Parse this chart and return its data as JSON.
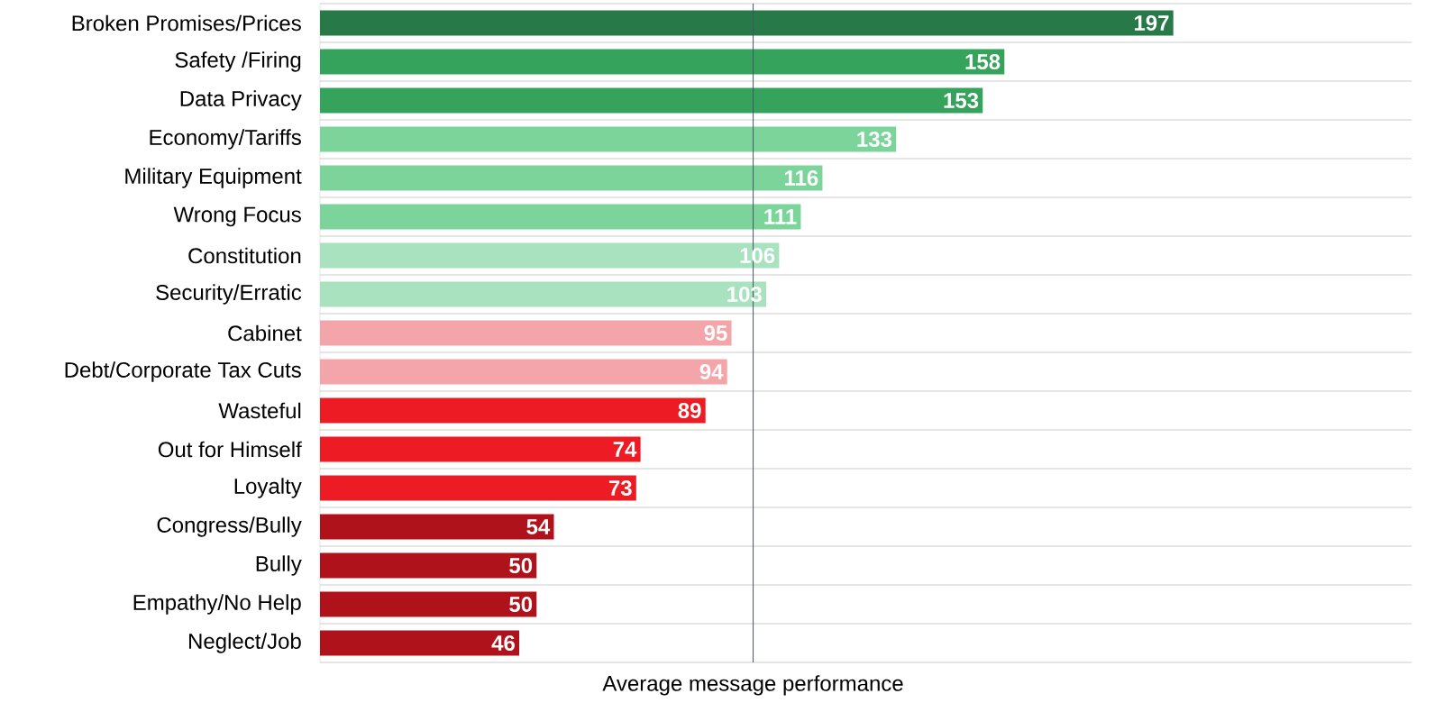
{
  "chart_data": {
    "type": "bar",
    "orientation": "horizontal",
    "categories": [
      "Broken Promises/Prices",
      "Safety /Firing",
      "Data Privacy",
      "Economy/Tariffs",
      "Military Equipment",
      "Wrong Focus",
      "Constitution",
      "Security/Erratic",
      "Cabinet",
      "Debt/Corporate Tax Cuts",
      "Wasteful",
      "Out for Himself",
      "Loyalty",
      "Congress/Bully",
      "Bully",
      "Empathy/No Help",
      "Neglect/Job"
    ],
    "values": [
      197,
      158,
      153,
      133,
      116,
      111,
      106,
      103,
      95,
      94,
      89,
      74,
      73,
      54,
      50,
      50,
      46
    ],
    "colors": [
      "#277a48",
      "#35a35c",
      "#35a35c",
      "#7dd49b",
      "#7dd49b",
      "#7dd49b",
      "#a8e2bf",
      "#a8e2bf",
      "#f4a5aa",
      "#f4a5aa",
      "#ed1c24",
      "#ed1c24",
      "#ed1c24",
      "#b0121b",
      "#b0121b",
      "#b0121b",
      "#b0121b"
    ],
    "xlim": [
      0,
      252
    ],
    "data_labels": true,
    "grid": "y",
    "tick_labels": "y",
    "ref_lines": [
      {
        "axis": "x",
        "value": 100,
        "label": "Average message performance",
        "color": "#44546a"
      }
    ]
  }
}
